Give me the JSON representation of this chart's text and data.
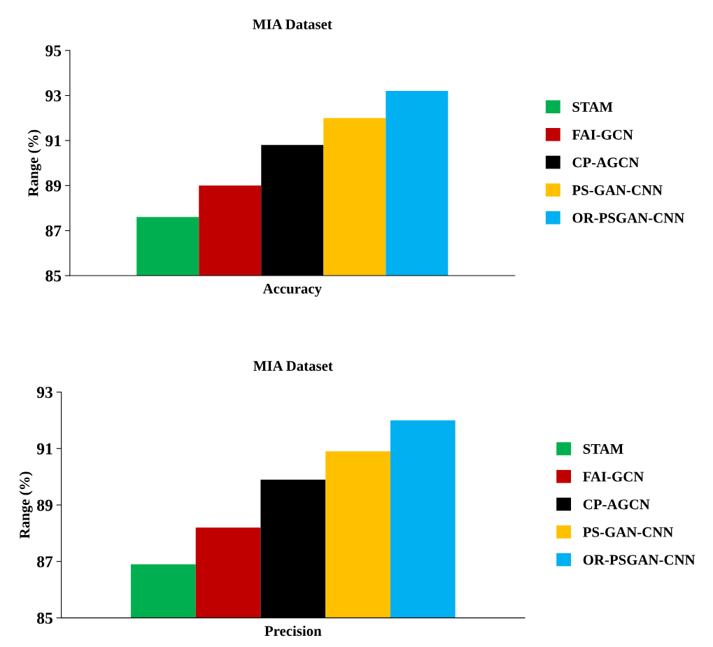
{
  "chart_data": [
    {
      "type": "bar",
      "title": "MIA Dataset",
      "ylabel": "Range (%)",
      "categories": [
        "Accuracy"
      ],
      "ylim": [
        85,
        95
      ],
      "yticks": [
        85,
        87,
        89,
        91,
        93,
        95
      ],
      "grid": false,
      "legend": "right",
      "series": [
        {
          "name": "STAM",
          "color": "#00b050",
          "values": [
            87.6
          ]
        },
        {
          "name": "FAI-GCN",
          "color": "#c00000",
          "values": [
            89.0
          ]
        },
        {
          "name": "CP-AGCN",
          "color": "#000000",
          "values": [
            90.8
          ]
        },
        {
          "name": "PS-GAN-CNN",
          "color": "#ffc000",
          "values": [
            92.0
          ]
        },
        {
          "name": "OR-PSGAN-CNN",
          "color": "#00b0f0",
          "values": [
            93.2
          ]
        }
      ]
    },
    {
      "type": "bar",
      "title": "MIA Dataset",
      "ylabel": "Range (%)",
      "categories": [
        "Precision"
      ],
      "ylim": [
        85,
        93
      ],
      "yticks": [
        85,
        87,
        89,
        91,
        93
      ],
      "grid": false,
      "legend": "right",
      "series": [
        {
          "name": "STAM",
          "color": "#00b050",
          "values": [
            86.9
          ]
        },
        {
          "name": "FAI-GCN",
          "color": "#c00000",
          "values": [
            88.2
          ]
        },
        {
          "name": "CP-AGCN",
          "color": "#000000",
          "values": [
            89.9
          ]
        },
        {
          "name": "PS-GAN-CNN",
          "color": "#ffc000",
          "values": [
            90.9
          ]
        },
        {
          "name": "OR-PSGAN-CNN",
          "color": "#00b0f0",
          "values": [
            92.0
          ]
        }
      ]
    }
  ]
}
